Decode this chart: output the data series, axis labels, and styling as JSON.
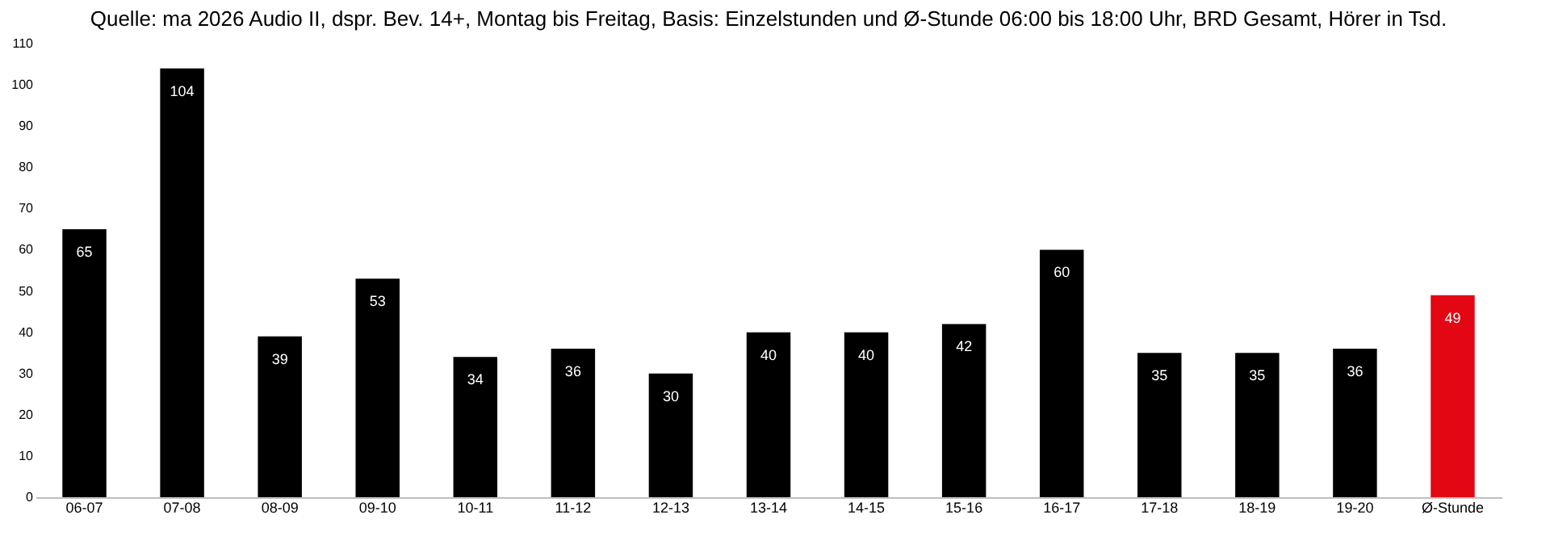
{
  "chart_data": {
    "type": "bar",
    "title": "Quelle: ma 2026 Audio II, dspr. Bev. 14+, Montag bis Freitag, Basis: Einzelstunden und Ø-Stunde 06:00 bis 18:00 Uhr, BRD Gesamt, Hörer in Tsd.",
    "categories": [
      "06-07",
      "07-08",
      "08-09",
      "09-10",
      "10-11",
      "11-12",
      "12-13",
      "13-14",
      "14-15",
      "15-16",
      "16-17",
      "17-18",
      "18-19",
      "19-20",
      "Ø-Stunde"
    ],
    "values": [
      65,
      104,
      39,
      53,
      34,
      36,
      30,
      40,
      40,
      42,
      60,
      35,
      35,
      36,
      49
    ],
    "colors": [
      "#000000",
      "#000000",
      "#000000",
      "#000000",
      "#000000",
      "#000000",
      "#000000",
      "#000000",
      "#000000",
      "#000000",
      "#000000",
      "#000000",
      "#000000",
      "#000000",
      "#e30613"
    ],
    "ylim": [
      0,
      110
    ],
    "yticks": [
      0,
      10,
      20,
      30,
      40,
      50,
      60,
      70,
      80,
      90,
      100,
      110
    ],
    "data_labels": true,
    "grid": false
  }
}
